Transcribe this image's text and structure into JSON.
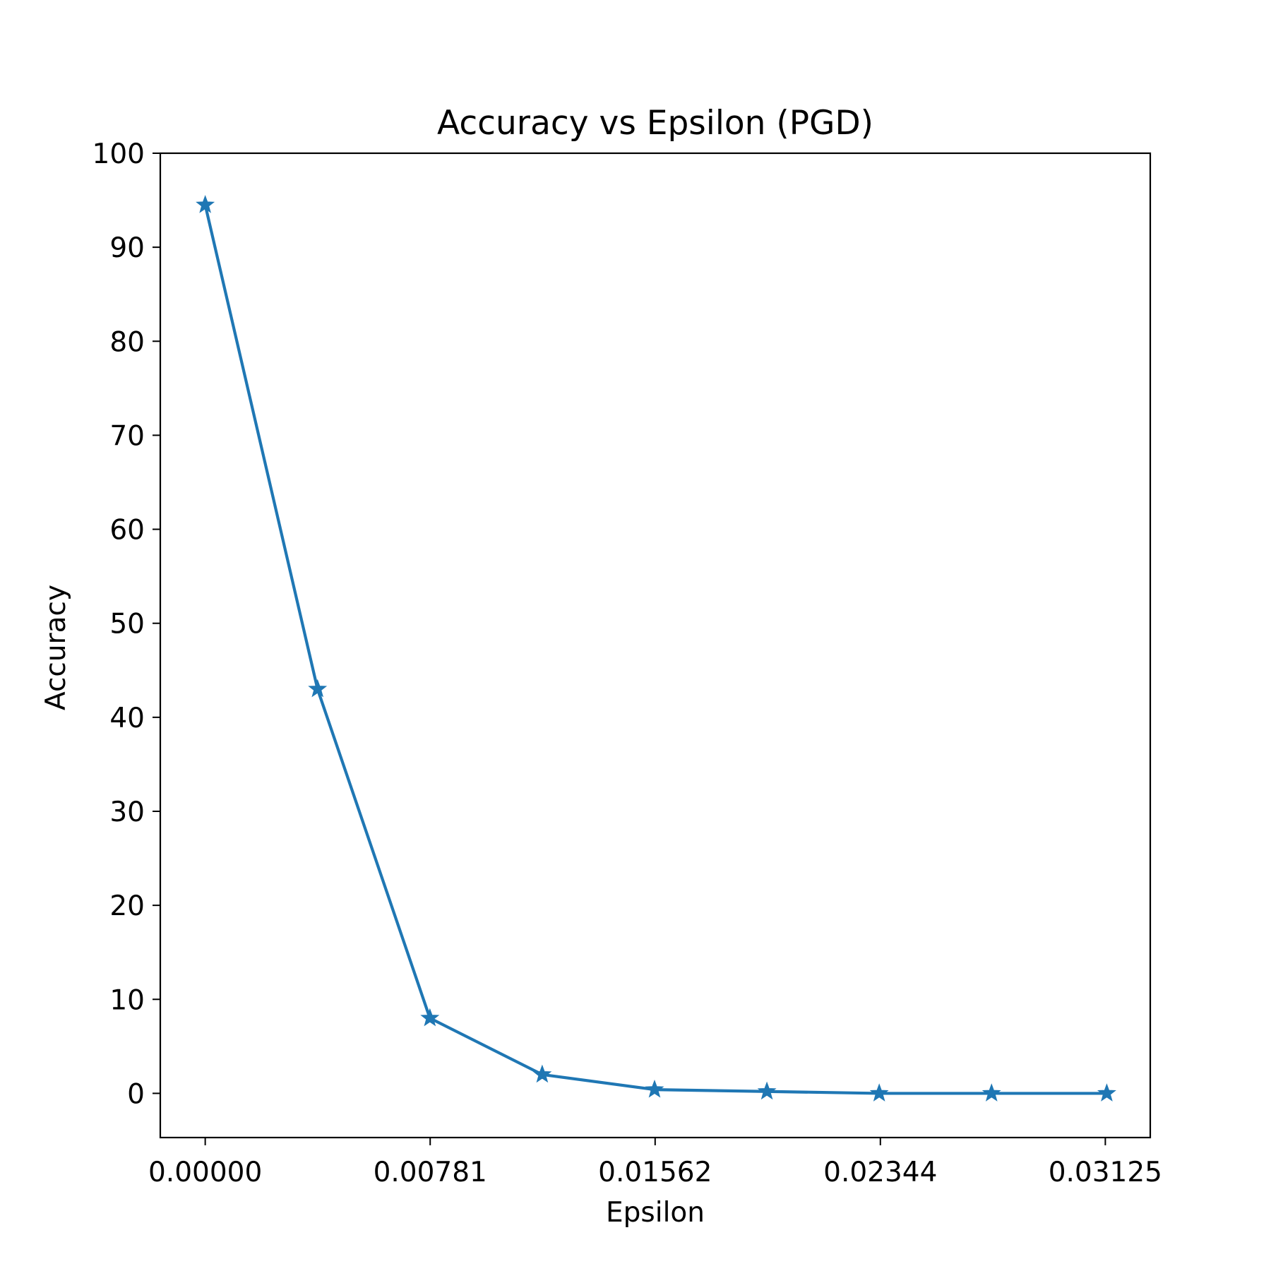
{
  "chart_data": {
    "type": "line",
    "title": "Accuracy vs Epsilon (PGD)",
    "xlabel": "Epsilon",
    "ylabel": "Accuracy",
    "x": [
      0.0,
      0.0039,
      0.0078,
      0.0117,
      0.0156,
      0.0195,
      0.0234,
      0.0273,
      0.0313
    ],
    "series": [
      {
        "values": [
          94.5,
          43.0,
          8.0,
          2.0,
          0.4,
          0.2,
          0.0,
          0.0,
          0.0
        ],
        "color": "#1f77b4",
        "marker": "star"
      }
    ],
    "xlim": [
      -0.00156,
      0.03281
    ],
    "ylim": [
      -4.7,
      100
    ],
    "x_ticks": [
      0.0,
      0.00781,
      0.01562,
      0.02344,
      0.03125
    ],
    "x_tick_labels": [
      "0.00000",
      "0.00781",
      "0.01562",
      "0.02344",
      "0.03125"
    ],
    "y_ticks": [
      0,
      10,
      20,
      30,
      40,
      50,
      60,
      70,
      80,
      90,
      100
    ],
    "y_tick_labels": [
      "0",
      "10",
      "20",
      "30",
      "40",
      "50",
      "60",
      "70",
      "80",
      "90",
      "100"
    ],
    "grid": false,
    "legend": "none"
  }
}
